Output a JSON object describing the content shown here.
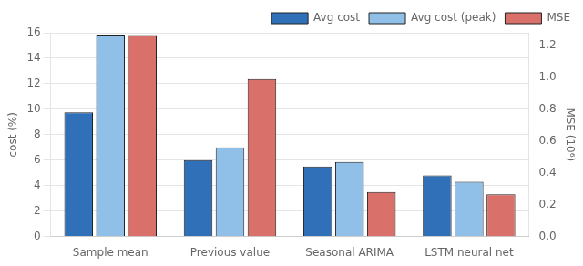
{
  "chart_data": {
    "type": "bar",
    "categories": [
      "Sample mean",
      "Previous value",
      "Seasonal ARIMA",
      "LSTM neural net"
    ],
    "series": [
      {
        "name": "Avg cost",
        "color": "#3070b8",
        "values": [
          9.75,
          6.0,
          5.5,
          4.8
        ]
      },
      {
        "name": "Avg cost (peak)",
        "color": "#90bfe8",
        "values": [
          15.85,
          7.0,
          5.85,
          4.3
        ]
      },
      {
        "name": "MSE",
        "color": "#d9706a",
        "values": [
          1.265,
          0.99,
          0.28,
          0.265
        ],
        "axis": "y2"
      }
    ],
    "y_label": "cost (%)",
    "y2_label": "MSE (10⁶)",
    "ylim": [
      0,
      16
    ],
    "yticks": [
      0,
      2,
      4,
      6,
      8,
      10,
      12,
      14,
      16
    ],
    "y2lim": [
      0,
      1.28
    ],
    "y2ticks": [
      {
        "value": 0,
        "label": "0.0"
      },
      0.2,
      0.4,
      0.6,
      0.8,
      {
        "value": 1,
        "label": "1.0"
      },
      1.2
    ],
    "grid": true,
    "legend": "upper right"
  }
}
